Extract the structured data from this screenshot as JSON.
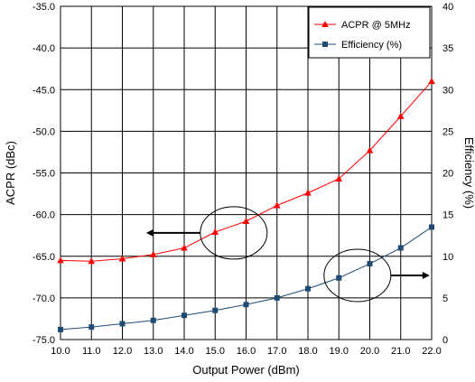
{
  "chart_data": {
    "type": "line",
    "title": "",
    "xlabel": "Output Power (dBm)",
    "ylabel_left": "ACPR (dBc)",
    "ylabel_right": "Efficiency (%)",
    "x": [
      10.0,
      11.0,
      12.0,
      13.0,
      14.0,
      15.0,
      16.0,
      17.0,
      18.0,
      19.0,
      20.0,
      21.0,
      22.0
    ],
    "x_tick_labels": [
      "10.0",
      "11.0",
      "12.0",
      "13.0",
      "14.0",
      "15.0",
      "16.0",
      "17.0",
      "18.0",
      "19.0",
      "20.0",
      "21.0",
      "22.0"
    ],
    "xlim": [
      10,
      22
    ],
    "ylim_left": [
      -75,
      -35
    ],
    "ylim_right": [
      0,
      40
    ],
    "y_left_tick_labels": [
      "-35.0",
      "-40.0",
      "-45.0",
      "-50.0",
      "-55.0",
      "-60.0",
      "-65.0",
      "-70.0",
      "-75.0"
    ],
    "y_right_tick_labels": [
      "40",
      "35",
      "30",
      "25",
      "20",
      "15",
      "10",
      "5",
      "0"
    ],
    "grid": true,
    "legend_position": "top-right",
    "series": [
      {
        "name": "ACPR @ 5MHz",
        "axis": "left",
        "color": "#ff0000",
        "marker": "triangle",
        "values": [
          -65.5,
          -65.6,
          -65.3,
          -64.8,
          -64.0,
          -62.1,
          -60.8,
          -58.9,
          -57.4,
          -55.7,
          -52.3,
          -48.2,
          -44.0
        ]
      },
      {
        "name": "Efficiency (%)",
        "axis": "right",
        "color": "#1f4a73",
        "marker": "square",
        "values": [
          1.2,
          1.5,
          1.9,
          2.3,
          2.9,
          3.5,
          4.2,
          5.0,
          6.1,
          7.4,
          9.1,
          11.0,
          13.5
        ]
      }
    ],
    "annotations": [
      {
        "type": "ellipse-arrow",
        "target_axis": "left",
        "arrow_direction": "left",
        "center_x": 15.6,
        "center_y_left": -62.2
      },
      {
        "type": "ellipse-arrow",
        "target_axis": "right",
        "arrow_direction": "right",
        "center_x": 19.6,
        "center_y_right": 7.7
      }
    ]
  }
}
